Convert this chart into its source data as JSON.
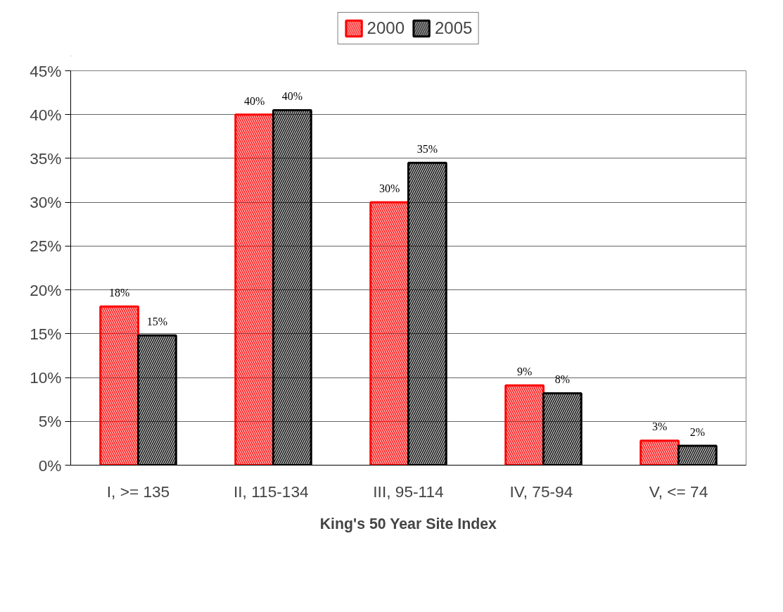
{
  "chart_data": {
    "type": "bar",
    "xlabel": "King's 50 Year Site Index",
    "categories": [
      "I, >= 135",
      "II,  115-134",
      "III, 95-114",
      "IV,  75-94",
      "V, <= 74"
    ],
    "series": [
      {
        "name": "2000",
        "color": "#ff0000",
        "values": [
          18.1,
          40,
          30,
          9.1,
          2.8
        ],
        "value_labels": [
          "18%",
          "40%",
          "30%",
          "9%",
          "3%"
        ]
      },
      {
        "name": "2005",
        "color": "#000000",
        "values": [
          14.8,
          40.5,
          34.5,
          8.2,
          2.2
        ],
        "value_labels": [
          "15%",
          "40%",
          "35%",
          "8%",
          "2%"
        ]
      }
    ],
    "ylim": [
      0,
      45
    ],
    "yticks": [
      {
        "value": 0,
        "label": "0%"
      },
      {
        "value": 5,
        "label": "5%"
      },
      {
        "value": 10,
        "label": "10%"
      },
      {
        "value": 15,
        "label": "15%"
      },
      {
        "value": 20,
        "label": "20%"
      },
      {
        "value": 25,
        "label": "25%"
      },
      {
        "value": 30,
        "label": "30%"
      },
      {
        "value": 35,
        "label": "35%"
      },
      {
        "value": 40,
        "label": "40%"
      },
      {
        "value": 45,
        "label": "45%"
      }
    ],
    "grid": "y",
    "legend": "top"
  }
}
